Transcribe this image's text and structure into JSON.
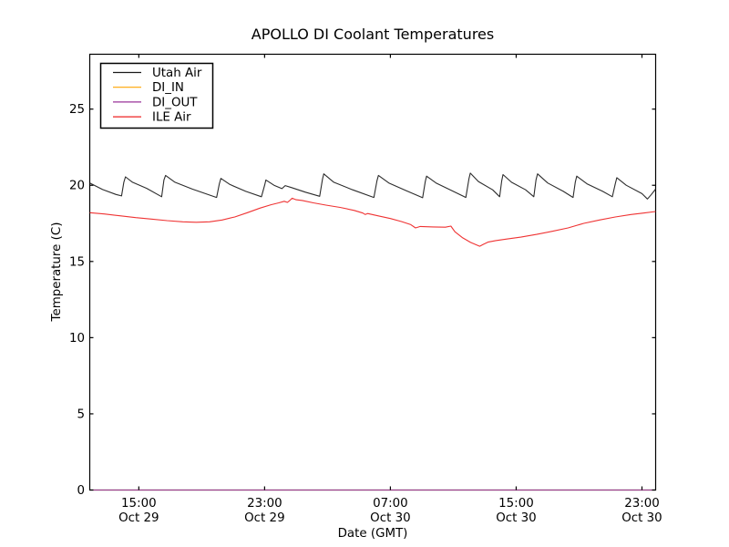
{
  "chart_data": {
    "type": "line",
    "title": "APOLLO DI Coolant Temperatures",
    "xlabel": "Date (GMT)",
    "ylabel": "Temperature (C)",
    "grid": false,
    "legend_position": "upper left",
    "x_units": "hours from Oct 29 00:00 GMT",
    "xlim": [
      11.88,
      47.87
    ],
    "ylim": [
      0,
      28.6
    ],
    "y_ticks": [
      0,
      5,
      10,
      15,
      20,
      25
    ],
    "x_ticks": [
      {
        "hour": 15,
        "time": "15:00",
        "date": "Oct 29"
      },
      {
        "hour": 23,
        "time": "23:00",
        "date": "Oct 29"
      },
      {
        "hour": 31,
        "time": "07:00",
        "date": "Oct 30"
      },
      {
        "hour": 39,
        "time": "15:00",
        "date": "Oct 30"
      },
      {
        "hour": 47,
        "time": "23:00",
        "date": "Oct 30"
      }
    ],
    "series": [
      {
        "name": "Utah Air",
        "color": "#1a1a1a",
        "points": [
          [
            11.88,
            20.15
          ],
          [
            12.7,
            19.72
          ],
          [
            13.55,
            19.4
          ],
          [
            13.9,
            19.3
          ],
          [
            14.05,
            20.2
          ],
          [
            14.15,
            20.55
          ],
          [
            14.6,
            20.2
          ],
          [
            15.5,
            19.8
          ],
          [
            16.45,
            19.25
          ],
          [
            16.6,
            20.35
          ],
          [
            16.7,
            20.65
          ],
          [
            17.3,
            20.2
          ],
          [
            18.4,
            19.75
          ],
          [
            19.95,
            19.2
          ],
          [
            20.12,
            20.1
          ],
          [
            20.22,
            20.45
          ],
          [
            20.8,
            20.05
          ],
          [
            21.8,
            19.6
          ],
          [
            22.8,
            19.25
          ],
          [
            23.0,
            20.0
          ],
          [
            23.08,
            20.35
          ],
          [
            23.6,
            20.0
          ],
          [
            24.1,
            19.78
          ],
          [
            24.31,
            19.98
          ],
          [
            24.7,
            19.85
          ],
          [
            25.6,
            19.55
          ],
          [
            26.5,
            19.28
          ],
          [
            26.68,
            20.4
          ],
          [
            26.76,
            20.75
          ],
          [
            27.4,
            20.2
          ],
          [
            28.6,
            19.7
          ],
          [
            29.95,
            19.2
          ],
          [
            30.15,
            20.3
          ],
          [
            30.24,
            20.65
          ],
          [
            30.9,
            20.15
          ],
          [
            32.0,
            19.65
          ],
          [
            33.05,
            19.18
          ],
          [
            33.22,
            20.25
          ],
          [
            33.3,
            20.6
          ],
          [
            33.9,
            20.15
          ],
          [
            35.0,
            19.6
          ],
          [
            35.8,
            19.2
          ],
          [
            36.0,
            20.45
          ],
          [
            36.08,
            20.8
          ],
          [
            36.6,
            20.25
          ],
          [
            37.5,
            19.7
          ],
          [
            37.95,
            19.25
          ],
          [
            38.08,
            20.3
          ],
          [
            38.16,
            20.7
          ],
          [
            38.7,
            20.2
          ],
          [
            39.6,
            19.7
          ],
          [
            40.12,
            19.25
          ],
          [
            40.26,
            20.35
          ],
          [
            40.36,
            20.75
          ],
          [
            41.0,
            20.15
          ],
          [
            42.0,
            19.6
          ],
          [
            42.62,
            19.2
          ],
          [
            42.76,
            20.2
          ],
          [
            42.85,
            20.6
          ],
          [
            43.5,
            20.1
          ],
          [
            44.5,
            19.6
          ],
          [
            45.12,
            19.25
          ],
          [
            45.3,
            20.1
          ],
          [
            45.4,
            20.5
          ],
          [
            46.0,
            20.0
          ],
          [
            47.0,
            19.45
          ],
          [
            47.35,
            19.1
          ],
          [
            47.6,
            19.4
          ],
          [
            47.87,
            19.75
          ]
        ]
      },
      {
        "name": "DI_IN",
        "color": "#ffa500",
        "points": [
          [
            11.88,
            0
          ],
          [
            47.87,
            0
          ]
        ]
      },
      {
        "name": "DI_OUT",
        "color": "#993399",
        "points": [
          [
            11.88,
            0
          ],
          [
            47.87,
            0
          ]
        ]
      },
      {
        "name": "ILE Air",
        "color": "#ee2222",
        "points": [
          [
            11.88,
            18.2
          ],
          [
            12.8,
            18.12
          ],
          [
            13.8,
            18.0
          ],
          [
            14.8,
            17.88
          ],
          [
            15.8,
            17.78
          ],
          [
            16.8,
            17.68
          ],
          [
            17.8,
            17.6
          ],
          [
            18.65,
            17.57
          ],
          [
            19.5,
            17.6
          ],
          [
            20.3,
            17.72
          ],
          [
            21.1,
            17.92
          ],
          [
            21.9,
            18.2
          ],
          [
            22.7,
            18.5
          ],
          [
            23.4,
            18.72
          ],
          [
            23.9,
            18.85
          ],
          [
            24.25,
            18.95
          ],
          [
            24.45,
            18.88
          ],
          [
            24.6,
            19.0
          ],
          [
            24.75,
            19.15
          ],
          [
            25.0,
            19.05
          ],
          [
            25.4,
            19.0
          ],
          [
            26.1,
            18.85
          ],
          [
            26.9,
            18.7
          ],
          [
            27.8,
            18.55
          ],
          [
            28.7,
            18.35
          ],
          [
            29.25,
            18.18
          ],
          [
            29.4,
            18.08
          ],
          [
            29.55,
            18.15
          ],
          [
            30.2,
            18.0
          ],
          [
            31.0,
            17.82
          ],
          [
            31.7,
            17.62
          ],
          [
            32.3,
            17.42
          ],
          [
            32.6,
            17.2
          ],
          [
            32.9,
            17.3
          ],
          [
            33.7,
            17.27
          ],
          [
            34.5,
            17.25
          ],
          [
            34.85,
            17.32
          ],
          [
            35.1,
            16.95
          ],
          [
            35.6,
            16.55
          ],
          [
            36.1,
            16.25
          ],
          [
            36.68,
            16.0
          ],
          [
            36.9,
            16.12
          ],
          [
            37.2,
            16.27
          ],
          [
            37.7,
            16.37
          ],
          [
            38.4,
            16.47
          ],
          [
            39.3,
            16.6
          ],
          [
            40.3,
            16.78
          ],
          [
            41.3,
            16.98
          ],
          [
            42.3,
            17.2
          ],
          [
            43.3,
            17.5
          ],
          [
            44.3,
            17.72
          ],
          [
            45.3,
            17.92
          ],
          [
            46.3,
            18.08
          ],
          [
            47.1,
            18.18
          ],
          [
            47.87,
            18.28
          ]
        ]
      }
    ]
  }
}
